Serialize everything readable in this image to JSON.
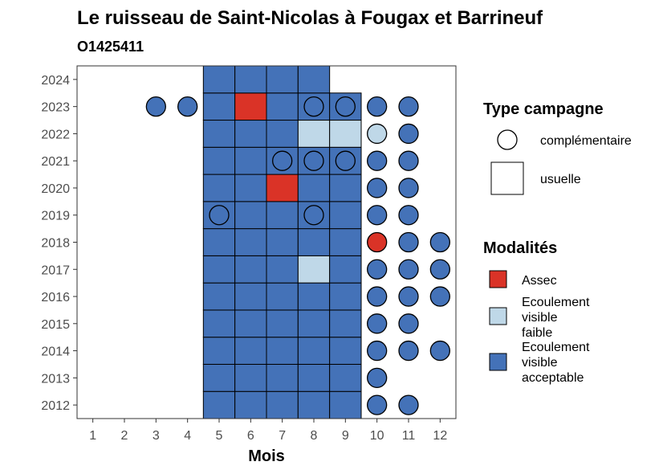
{
  "chart_data": {
    "type": "heatmap",
    "title": "Le ruisseau de Saint-Nicolas à Fougax et Barrineuf",
    "subtitle": "O1425411",
    "xlabel": "Mois",
    "ylabel": "",
    "x_ticks": [
      "1",
      "2",
      "3",
      "4",
      "5",
      "6",
      "7",
      "8",
      "9",
      "10",
      "11",
      "12"
    ],
    "y_ticks": [
      "2012",
      "2013",
      "2014",
      "2015",
      "2016",
      "2017",
      "2018",
      "2019",
      "2020",
      "2021",
      "2022",
      "2023",
      "2024"
    ],
    "xlim": [
      0.5,
      12.5
    ],
    "ylim": [
      2011.5,
      2024.5
    ],
    "legend_shape": {
      "title": "Type campagne",
      "items": [
        {
          "key": "complementaire",
          "label": "complémentaire",
          "shape": "circle"
        },
        {
          "key": "usuelle",
          "label": "usuelle",
          "shape": "square"
        }
      ]
    },
    "legend_fill": {
      "title": "Modalités",
      "items": [
        {
          "key": "assec",
          "lines": [
            "Assec"
          ],
          "color": "#DA3327"
        },
        {
          "key": "faible",
          "lines": [
            "Ecoulement",
            "visible",
            "faible"
          ],
          "color": "#BFD8E8"
        },
        {
          "key": "acceptable",
          "lines": [
            "Ecoulement",
            "visible",
            "acceptable"
          ],
          "color": "#4472B8"
        }
      ]
    },
    "usuelle_cells": [
      {
        "year": 2012,
        "months": [
          5,
          6,
          7,
          8,
          9
        ],
        "modalites": [
          "acceptable",
          "acceptable",
          "acceptable",
          "acceptable",
          "acceptable"
        ]
      },
      {
        "year": 2013,
        "months": [
          5,
          6,
          7,
          8,
          9
        ],
        "modalites": [
          "acceptable",
          "acceptable",
          "acceptable",
          "acceptable",
          "acceptable"
        ]
      },
      {
        "year": 2014,
        "months": [
          5,
          6,
          7,
          8,
          9
        ],
        "modalites": [
          "acceptable",
          "acceptable",
          "acceptable",
          "acceptable",
          "acceptable"
        ]
      },
      {
        "year": 2015,
        "months": [
          5,
          6,
          7,
          8,
          9
        ],
        "modalites": [
          "acceptable",
          "acceptable",
          "acceptable",
          "acceptable",
          "acceptable"
        ]
      },
      {
        "year": 2016,
        "months": [
          5,
          6,
          7,
          8,
          9
        ],
        "modalites": [
          "acceptable",
          "acceptable",
          "acceptable",
          "acceptable",
          "acceptable"
        ]
      },
      {
        "year": 2017,
        "months": [
          5,
          6,
          7,
          8,
          9
        ],
        "modalites": [
          "acceptable",
          "acceptable",
          "acceptable",
          "faible",
          "acceptable"
        ]
      },
      {
        "year": 2018,
        "months": [
          5,
          6,
          7,
          8,
          9
        ],
        "modalites": [
          "acceptable",
          "acceptable",
          "acceptable",
          "acceptable",
          "acceptable"
        ]
      },
      {
        "year": 2019,
        "months": [
          5,
          6,
          7,
          8,
          9
        ],
        "modalites": [
          "acceptable",
          "acceptable",
          "acceptable",
          "acceptable",
          "acceptable"
        ]
      },
      {
        "year": 2020,
        "months": [
          5,
          6,
          7,
          8,
          9
        ],
        "modalites": [
          "acceptable",
          "acceptable",
          "assec",
          "acceptable",
          "acceptable"
        ]
      },
      {
        "year": 2021,
        "months": [
          5,
          6,
          7,
          8,
          9
        ],
        "modalites": [
          "acceptable",
          "acceptable",
          "acceptable",
          "acceptable",
          "acceptable"
        ]
      },
      {
        "year": 2022,
        "months": [
          5,
          6,
          7,
          8,
          9
        ],
        "modalites": [
          "acceptable",
          "acceptable",
          "acceptable",
          "faible",
          "faible"
        ]
      },
      {
        "year": 2023,
        "months": [
          5,
          6,
          7,
          8,
          9
        ],
        "modalites": [
          "acceptable",
          "assec",
          "acceptable",
          "acceptable",
          "acceptable"
        ]
      },
      {
        "year": 2024,
        "months": [
          5,
          6,
          7,
          8
        ],
        "modalites": [
          "acceptable",
          "acceptable",
          "acceptable",
          "acceptable"
        ]
      }
    ],
    "complementaire_points": [
      {
        "year": 2012,
        "month": 10,
        "modalite": "acceptable"
      },
      {
        "year": 2012,
        "month": 11,
        "modalite": "acceptable"
      },
      {
        "year": 2013,
        "month": 10,
        "modalite": "acceptable"
      },
      {
        "year": 2014,
        "month": 10,
        "modalite": "acceptable"
      },
      {
        "year": 2014,
        "month": 11,
        "modalite": "acceptable"
      },
      {
        "year": 2014,
        "month": 12,
        "modalite": "acceptable"
      },
      {
        "year": 2015,
        "month": 10,
        "modalite": "acceptable"
      },
      {
        "year": 2015,
        "month": 11,
        "modalite": "acceptable"
      },
      {
        "year": 2016,
        "month": 10,
        "modalite": "acceptable"
      },
      {
        "year": 2016,
        "month": 11,
        "modalite": "acceptable"
      },
      {
        "year": 2016,
        "month": 12,
        "modalite": "acceptable"
      },
      {
        "year": 2017,
        "month": 10,
        "modalite": "acceptable"
      },
      {
        "year": 2017,
        "month": 11,
        "modalite": "acceptable"
      },
      {
        "year": 2017,
        "month": 12,
        "modalite": "acceptable"
      },
      {
        "year": 2018,
        "month": 10,
        "modalite": "assec"
      },
      {
        "year": 2018,
        "month": 11,
        "modalite": "acceptable"
      },
      {
        "year": 2018,
        "month": 12,
        "modalite": "acceptable"
      },
      {
        "year": 2019,
        "month": 5,
        "modalite": "acceptable"
      },
      {
        "year": 2019,
        "month": 8,
        "modalite": "acceptable"
      },
      {
        "year": 2019,
        "month": 10,
        "modalite": "acceptable"
      },
      {
        "year": 2019,
        "month": 11,
        "modalite": "acceptable"
      },
      {
        "year": 2020,
        "month": 10,
        "modalite": "acceptable"
      },
      {
        "year": 2020,
        "month": 11,
        "modalite": "acceptable"
      },
      {
        "year": 2021,
        "month": 7,
        "modalite": "acceptable"
      },
      {
        "year": 2021,
        "month": 8,
        "modalite": "acceptable"
      },
      {
        "year": 2021,
        "month": 9,
        "modalite": "acceptable"
      },
      {
        "year": 2021,
        "month": 10,
        "modalite": "acceptable"
      },
      {
        "year": 2021,
        "month": 11,
        "modalite": "acceptable"
      },
      {
        "year": 2022,
        "month": 10,
        "modalite": "faible"
      },
      {
        "year": 2022,
        "month": 11,
        "modalite": "acceptable"
      },
      {
        "year": 2023,
        "month": 3,
        "modalite": "acceptable"
      },
      {
        "year": 2023,
        "month": 4,
        "modalite": "acceptable"
      },
      {
        "year": 2023,
        "month": 8,
        "modalite": "acceptable"
      },
      {
        "year": 2023,
        "month": 9,
        "modalite": "acceptable"
      },
      {
        "year": 2023,
        "month": 10,
        "modalite": "acceptable"
      },
      {
        "year": 2023,
        "month": 11,
        "modalite": "acceptable"
      }
    ]
  }
}
